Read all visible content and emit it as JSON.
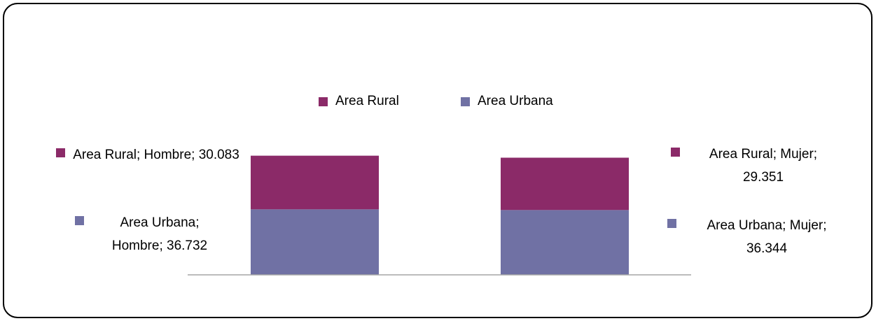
{
  "chart_data": {
    "type": "stacked-bar",
    "categories": [
      "Hombre",
      "Mujer"
    ],
    "series": [
      {
        "name": "Area Rural",
        "color": "#8b2a68",
        "values": [
          30083,
          29351
        ],
        "value_labels": [
          "Area Rural; Hombre; 30.083",
          "Area Rural; Mujer; 29.351"
        ]
      },
      {
        "name": "Area Urbana",
        "color": "#7071a4",
        "values": [
          36732,
          36344
        ],
        "value_labels": [
          "Area Urbana; Hombre; 36.732",
          "Area Urbana; Mujer; 36.344"
        ]
      }
    ],
    "ylim": [
      0,
      70000
    ]
  }
}
